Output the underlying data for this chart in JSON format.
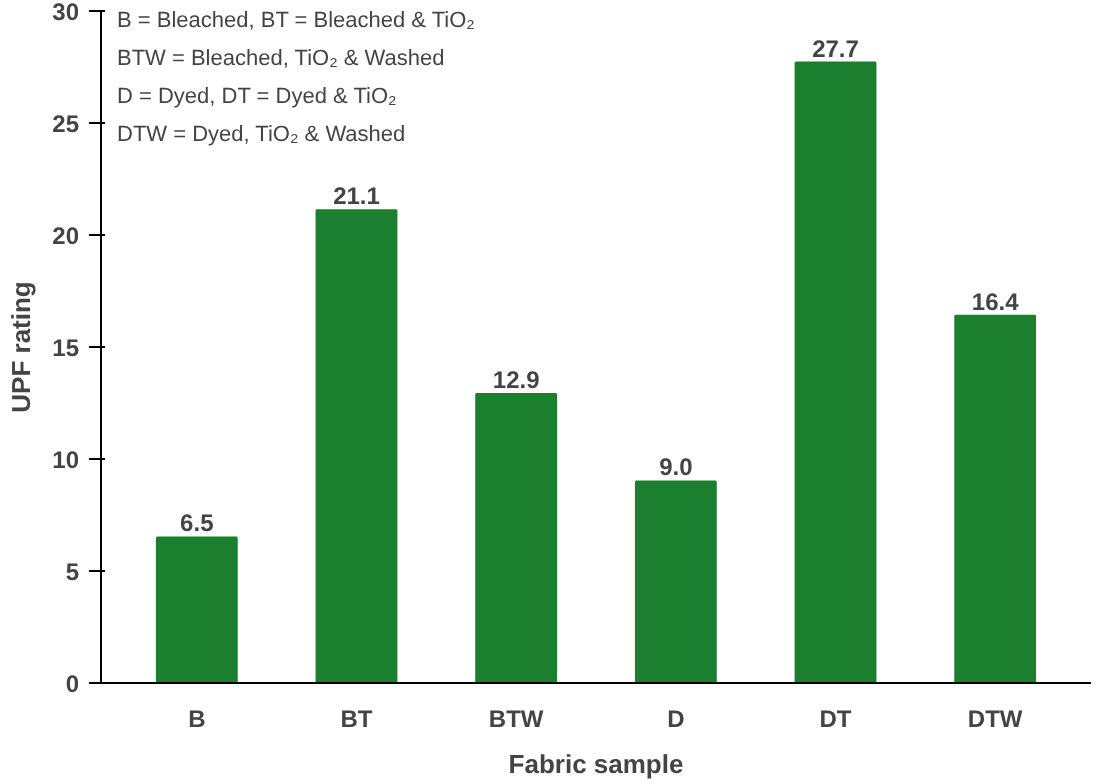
{
  "chart_data": {
    "type": "bar",
    "xlabel": "Fabric sample",
    "ylabel": "UPF rating",
    "categories": [
      "B",
      "BT",
      "BTW",
      "D",
      "DT",
      "DTW"
    ],
    "values": [
      6.5,
      21.1,
      12.9,
      9.0,
      27.7,
      16.4
    ],
    "value_labels": [
      "6.5",
      "21.1",
      "12.9",
      "9.0",
      "27.7",
      "16.4"
    ],
    "color": "#1b7f2f",
    "ylim": [
      0,
      30
    ],
    "yticks": [
      0,
      5,
      10,
      15,
      20,
      25,
      30
    ],
    "grid": false,
    "annotations": [
      "B = Bleached, BT = Bleached & TiO₂",
      "BTW = Bleached, TiO₂ & Washed",
      "D = Dyed, DT = Dyed & TiO₂",
      "DTW = Dyed, TiO₂ & Washed"
    ]
  }
}
